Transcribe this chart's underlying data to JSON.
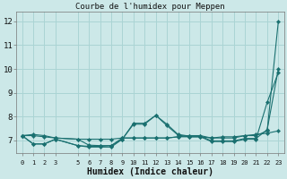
{
  "title": "Courbe de l'humidex pour Meppen",
  "xlabel": "Humidex (Indice chaleur)",
  "bg_color": "#cce8e8",
  "line_color": "#1a7070",
  "grid_color": "#aad4d4",
  "xlim": [
    -0.5,
    23.5
  ],
  "ylim": [
    6.45,
    12.4
  ],
  "yticks": [
    7,
    8,
    9,
    10,
    11,
    12
  ],
  "xticks": [
    0,
    1,
    2,
    3,
    5,
    6,
    7,
    8,
    9,
    10,
    11,
    12,
    13,
    14,
    15,
    16,
    17,
    18,
    19,
    20,
    21,
    22,
    23
  ],
  "series": [
    [
      7.2,
      7.25,
      7.2,
      7.1,
      null,
      7.05,
      7.05,
      7.05,
      7.05,
      7.1,
      7.1,
      7.1,
      7.1,
      7.1,
      7.15,
      7.2,
      7.2,
      7.1,
      7.15,
      7.15,
      7.2,
      7.25,
      7.3,
      7.4
    ],
    [
      7.2,
      6.85,
      6.85,
      7.05,
      null,
      6.78,
      6.75,
      6.75,
      6.78,
      7.05,
      7.72,
      7.72,
      8.05,
      7.68,
      7.25,
      7.18,
      7.18,
      6.98,
      6.98,
      6.98,
      7.08,
      7.08,
      7.45,
      10.0
    ],
    [
      7.2,
      6.85,
      6.85,
      7.05,
      null,
      6.78,
      6.72,
      6.72,
      6.72,
      7.05,
      7.68,
      7.68,
      8.05,
      7.62,
      7.22,
      7.15,
      7.15,
      6.95,
      6.95,
      6.95,
      7.05,
      7.05,
      8.6,
      9.85
    ],
    [
      7.2,
      7.2,
      7.15,
      7.1,
      null,
      7.05,
      6.8,
      6.78,
      6.78,
      7.1,
      7.1,
      7.1,
      7.1,
      7.1,
      7.15,
      7.15,
      7.15,
      7.1,
      7.1,
      7.1,
      7.2,
      7.2,
      7.4,
      12.0
    ]
  ]
}
